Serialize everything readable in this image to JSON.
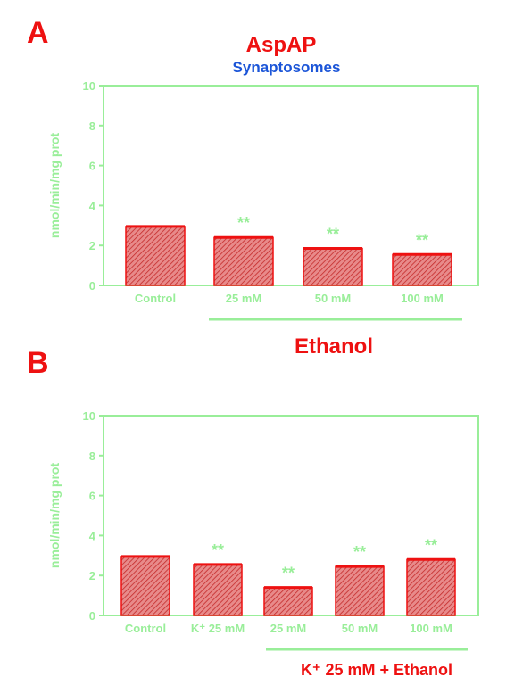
{
  "figure": {
    "title": "AspAP",
    "subtitle": "Synaptosomes",
    "colors": {
      "title": "#ee1111",
      "subtitle": "#1b55d8",
      "axis": "#99ee99",
      "bar_fill": "#d94b4b",
      "bar_edge": "#ee1111",
      "significance": "#99ee99"
    }
  },
  "chart_data": [
    {
      "panel": "A",
      "type": "bar",
      "ylabel": "nmol/min/mg prot",
      "ylim": [
        0,
        10
      ],
      "yticks": [
        0,
        2,
        4,
        6,
        8,
        10
      ],
      "categories": [
        "Control",
        "25 mM",
        "50 mM",
        "100 mM"
      ],
      "values": [
        2.95,
        2.4,
        1.85,
        1.55
      ],
      "significance": [
        "",
        "**",
        "**",
        "**"
      ],
      "group_label": "Ethanol",
      "group_span": [
        "25 mM",
        "100 mM"
      ]
    },
    {
      "panel": "B",
      "type": "bar",
      "ylabel": "nmol/min/mg prot",
      "ylim": [
        0,
        10
      ],
      "yticks": [
        0,
        2,
        4,
        6,
        8,
        10
      ],
      "categories": [
        "Control",
        "K⁺ 25 mM",
        "25 mM",
        "50 mM",
        "100 mM"
      ],
      "values": [
        2.95,
        2.55,
        1.4,
        2.45,
        2.8
      ],
      "significance": [
        "",
        "**",
        "**",
        "**",
        "**"
      ],
      "group_label": "K⁺ 25 mM + Ethanol",
      "group_span": [
        "25 mM",
        "100 mM"
      ]
    }
  ]
}
